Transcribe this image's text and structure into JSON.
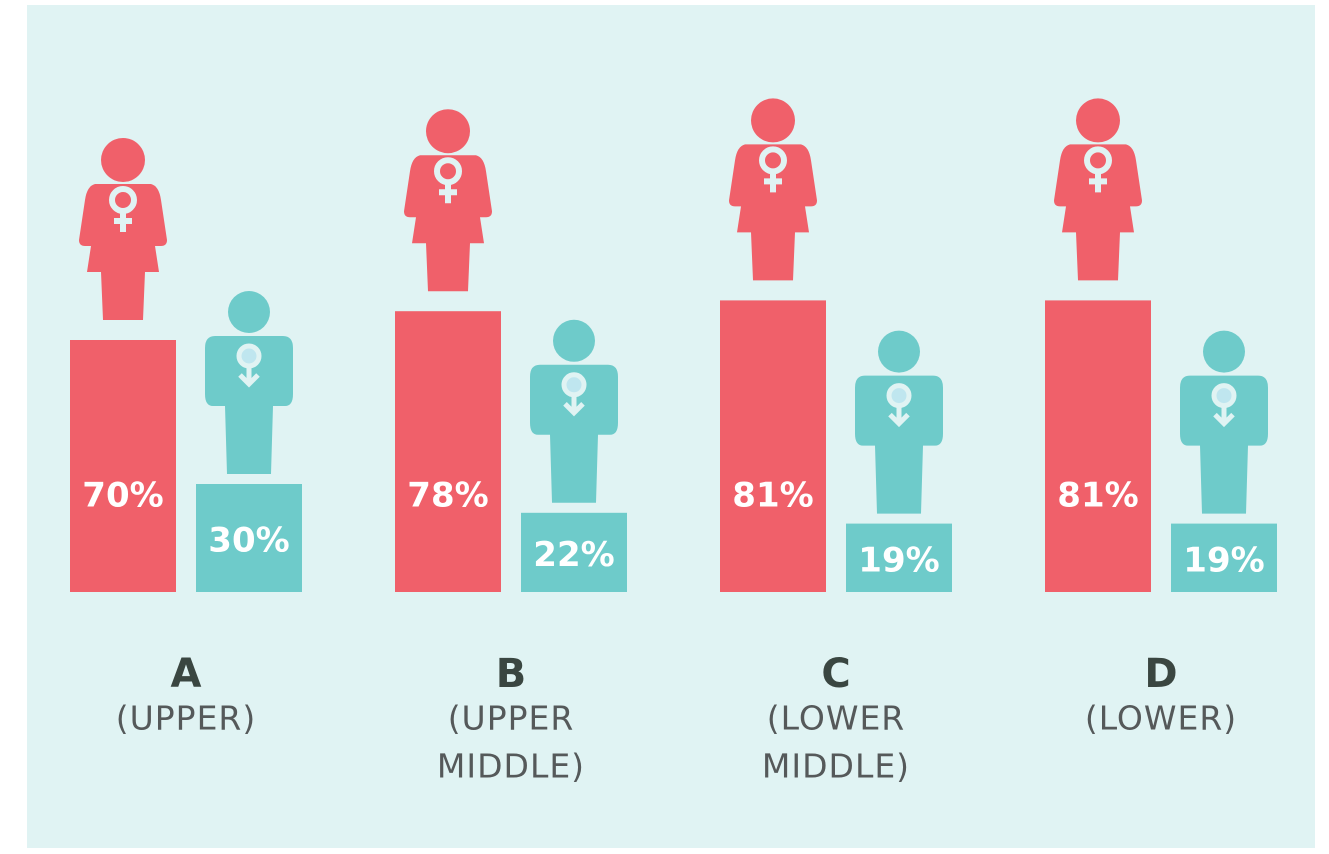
{
  "chart_data": {
    "type": "bar",
    "categories": [
      "A",
      "B",
      "C",
      "D"
    ],
    "category_labels": [
      [
        "(UPPER)"
      ],
      [
        "(UPPER",
        "MIDDLE)"
      ],
      [
        "(LOWER",
        "MIDDLE)"
      ],
      [
        "(LOWER)"
      ]
    ],
    "series": [
      {
        "color": "#f0606a",
        "values": [
          70,
          78,
          81,
          81
        ],
        "value_labels": [
          "70%",
          "78%",
          "81%",
          "81%"
        ]
      },
      {
        "color": "#6ecbca",
        "values": [
          30,
          22,
          19,
          19
        ],
        "value_labels": [
          "30%",
          "22%",
          "19%",
          "19%"
        ]
      }
    ]
  }
}
